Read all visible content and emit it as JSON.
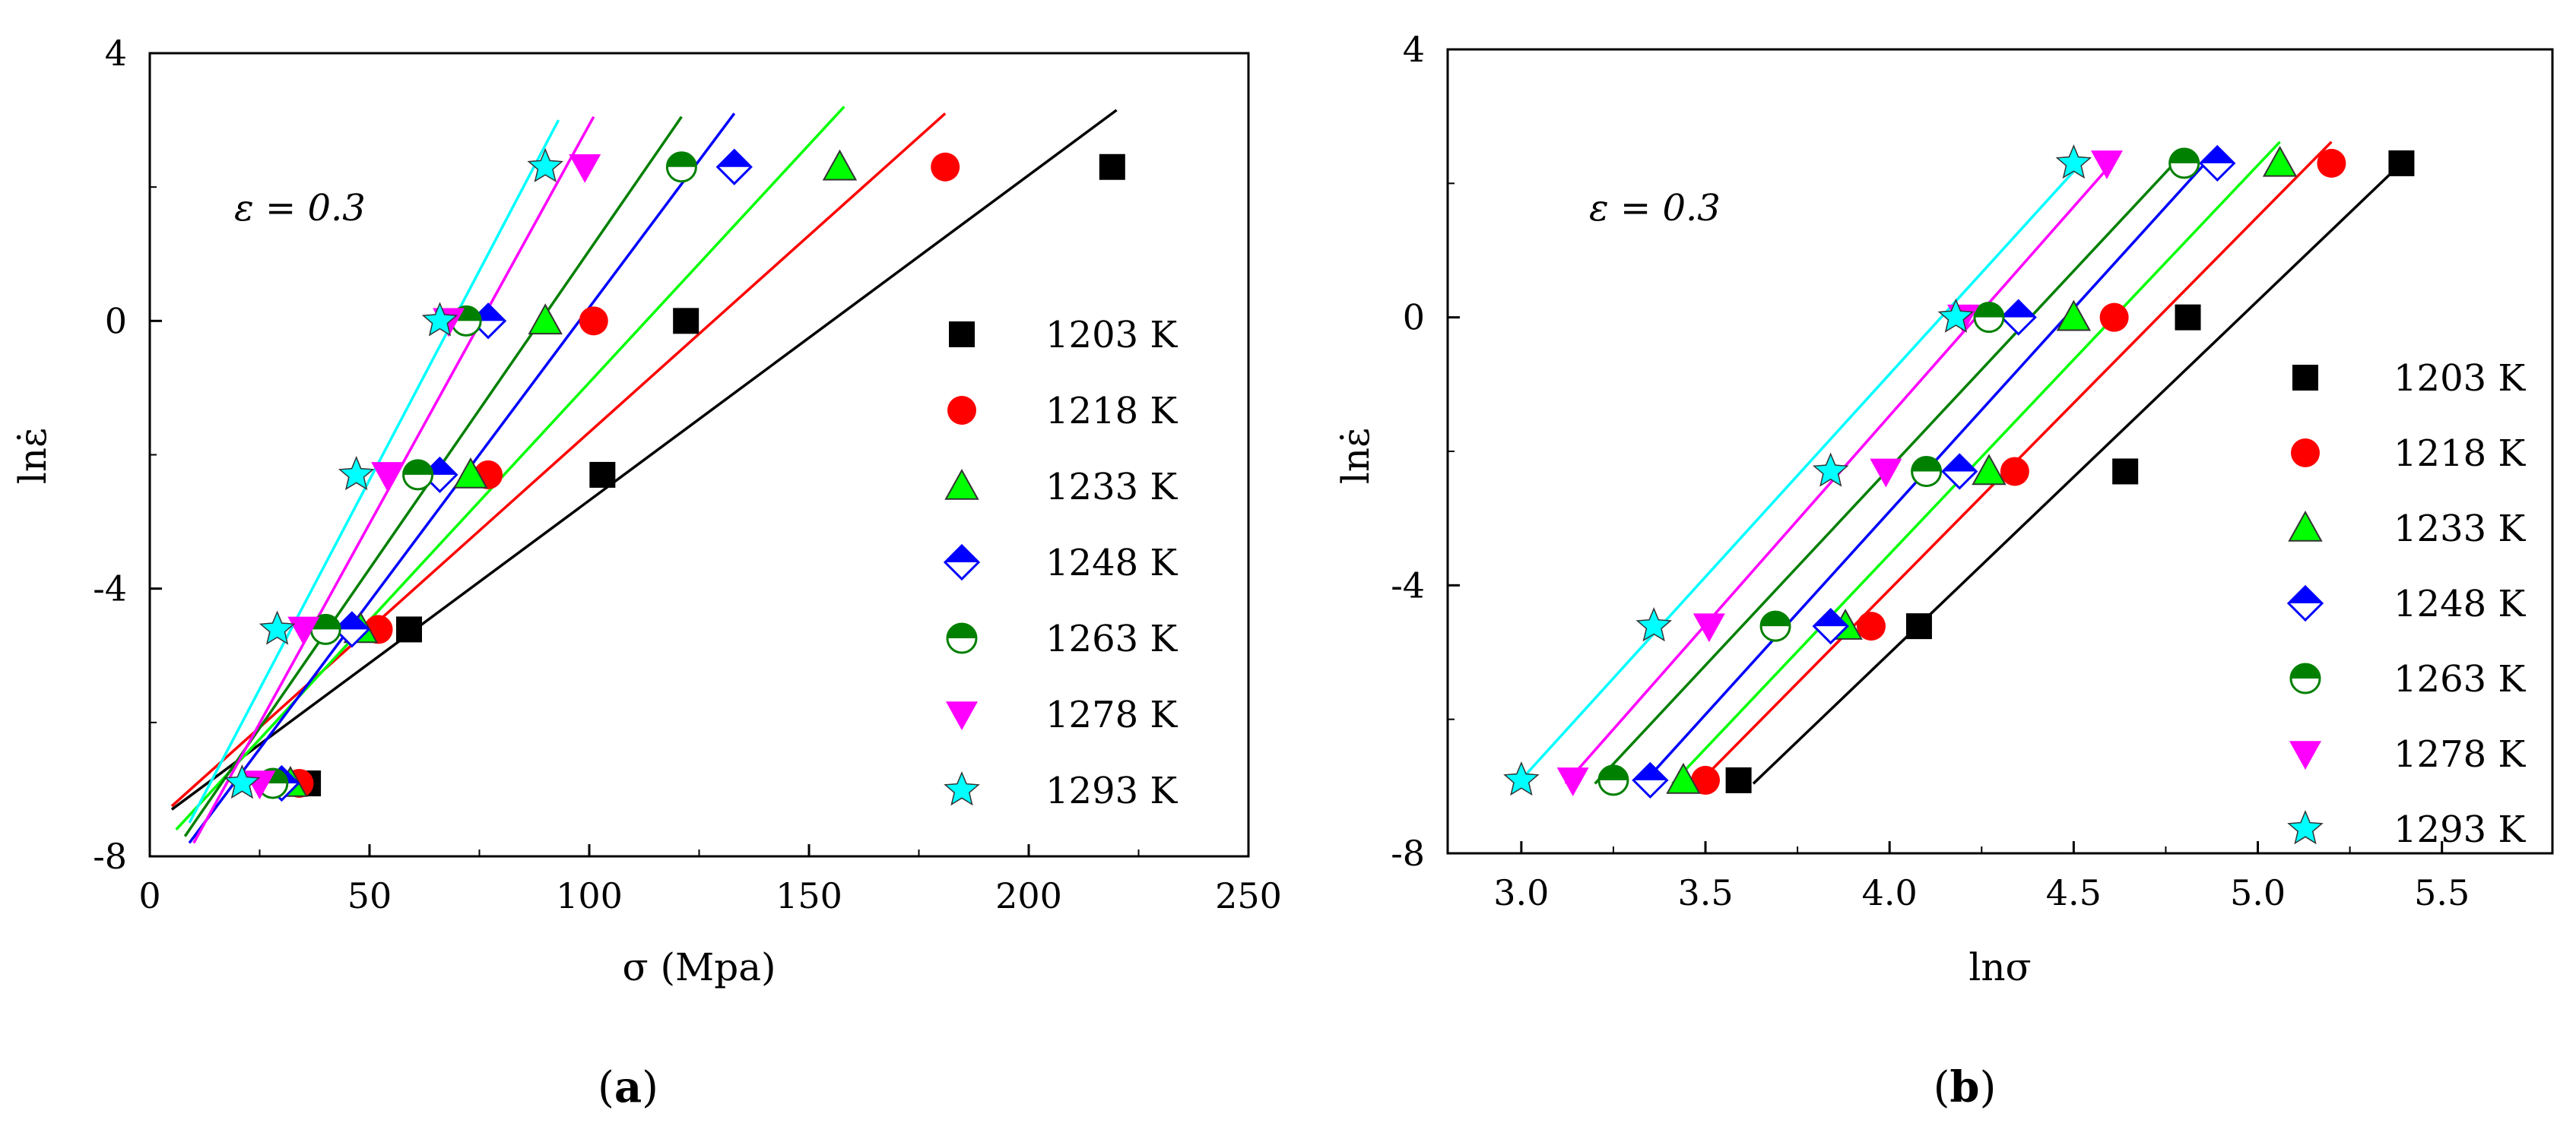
{
  "chart_data": [
    {
      "type": "scatter",
      "panel": "(a)",
      "panel_letter": "a",
      "xlabel": "σ (Mpa)",
      "ylabel": "lnε̇",
      "annotation": "ε = 0.3",
      "xlim": [
        0,
        250
      ],
      "ylim": [
        -8,
        4
      ],
      "xticks": [
        "0",
        "50",
        "100",
        "150",
        "200",
        "250"
      ],
      "yticks": [
        "-8",
        "-4",
        "0",
        "4"
      ],
      "legend_position": "right",
      "series": [
        {
          "name": "1203 K",
          "color": "#000000",
          "marker": "square",
          "x": [
            36,
            59,
            103,
            122,
            219
          ],
          "y": [
            -6.91,
            -4.61,
            -2.3,
            0,
            2.3
          ],
          "fit": [
            [
              5,
              -7.3
            ],
            [
              220,
              3.15
            ]
          ]
        },
        {
          "name": "1218 K",
          "color": "#ff0000",
          "marker": "circle",
          "x": [
            34,
            52,
            77,
            101,
            181
          ],
          "y": [
            -6.91,
            -4.61,
            -2.3,
            0,
            2.3
          ],
          "fit": [
            [
              5,
              -7.25
            ],
            [
              181,
              3.1
            ]
          ]
        },
        {
          "name": "1233 K",
          "color": "#00ff00",
          "marker": "triangle-up",
          "x": [
            32,
            48,
            73,
            90,
            157
          ],
          "y": [
            -6.91,
            -4.61,
            -2.3,
            0,
            2.3
          ],
          "fit": [
            [
              6,
              -7.6
            ],
            [
              158,
              3.2
            ]
          ]
        },
        {
          "name": "1248 K",
          "color": "#0000ff",
          "marker": "diamond-half",
          "x": [
            30,
            46,
            66,
            77,
            133
          ],
          "y": [
            -6.91,
            -4.61,
            -2.3,
            0,
            2.3
          ],
          "fit": [
            [
              9,
              -7.8
            ],
            [
              133,
              3.1
            ]
          ]
        },
        {
          "name": "1263 K",
          "color": "#008000",
          "marker": "circle-half",
          "x": [
            28,
            40,
            61,
            72,
            121
          ],
          "y": [
            -6.91,
            -4.61,
            -2.3,
            0,
            2.3
          ],
          "fit": [
            [
              8,
              -7.7
            ],
            [
              121,
              3.05
            ]
          ]
        },
        {
          "name": "1278 K",
          "color": "#ff00ff",
          "marker": "triangle-down",
          "x": [
            25,
            35,
            54,
            68,
            99
          ],
          "y": [
            -6.91,
            -4.61,
            -2.3,
            0,
            2.3
          ],
          "fit": [
            [
              10,
              -7.8
            ],
            [
              101,
              3.05
            ]
          ]
        },
        {
          "name": "1293 K",
          "color": "#00ffff",
          "marker": "star",
          "x": [
            21,
            29,
            47,
            66,
            90
          ],
          "y": [
            -6.91,
            -4.61,
            -2.3,
            0,
            2.3
          ],
          "fit": [
            [
              9,
              -7.5
            ],
            [
              93,
              3.0
            ]
          ]
        }
      ]
    },
    {
      "type": "scatter",
      "panel": "(b)",
      "panel_letter": "b",
      "xlabel": "lnσ",
      "ylabel": "lnε̇",
      "annotation": "ε = 0.3",
      "xlim": [
        2.8,
        5.8
      ],
      "ylim": [
        -8,
        4
      ],
      "xticks": [
        "3.0",
        "3.5",
        "4.0",
        "4.5",
        "5.0",
        "5.5"
      ],
      "yticks": [
        "-8",
        "-4",
        "0",
        "4"
      ],
      "legend_position": "right",
      "series": [
        {
          "name": "1203 K",
          "color": "#000000",
          "marker": "square",
          "x": [
            3.59,
            4.08,
            4.64,
            4.81,
            5.39
          ],
          "y": [
            -6.91,
            -4.61,
            -2.3,
            0,
            2.3
          ],
          "fit": [
            [
              3.63,
              -6.96
            ],
            [
              5.39,
              2.3
            ]
          ]
        },
        {
          "name": "1218 K",
          "color": "#ff0000",
          "marker": "circle",
          "x": [
            3.5,
            3.95,
            4.34,
            4.61,
            5.2
          ],
          "y": [
            -6.91,
            -4.61,
            -2.3,
            0,
            2.3
          ],
          "fit": [
            [
              3.48,
              -6.96
            ],
            [
              5.2,
              2.62
            ]
          ]
        },
        {
          "name": "1233 K",
          "color": "#00ff00",
          "marker": "triangle-up",
          "x": [
            3.44,
            3.88,
            4.27,
            4.5,
            5.06
          ],
          "y": [
            -6.91,
            -4.61,
            -2.3,
            0,
            2.3
          ],
          "fit": [
            [
              3.41,
              -6.96
            ],
            [
              5.06,
              2.62
            ]
          ]
        },
        {
          "name": "1248 K",
          "color": "#0000ff",
          "marker": "diamond-half",
          "x": [
            3.35,
            3.84,
            4.19,
            4.35,
            4.89
          ],
          "y": [
            -6.91,
            -4.61,
            -2.3,
            0,
            2.3
          ],
          "fit": [
            [
              3.33,
              -6.96
            ],
            [
              4.89,
              2.5
            ]
          ]
        },
        {
          "name": "1263 K",
          "color": "#008000",
          "marker": "circle-half",
          "x": [
            3.25,
            3.69,
            4.1,
            4.27,
            4.8
          ],
          "y": [
            -6.91,
            -4.61,
            -2.3,
            0,
            2.3
          ],
          "fit": [
            [
              3.2,
              -6.96
            ],
            [
              4.79,
              2.4
            ]
          ]
        },
        {
          "name": "1278 K",
          "color": "#ff00ff",
          "marker": "triangle-down",
          "x": [
            3.14,
            3.51,
            3.99,
            4.2,
            4.59
          ],
          "y": [
            -6.91,
            -4.61,
            -2.3,
            0,
            2.3
          ],
          "fit": [
            [
              3.12,
              -6.96
            ],
            [
              4.62,
              2.4
            ]
          ]
        },
        {
          "name": "1293 K",
          "color": "#00ffff",
          "marker": "star",
          "x": [
            3.0,
            3.36,
            3.84,
            4.18,
            4.5
          ],
          "y": [
            -6.91,
            -4.61,
            -2.3,
            0,
            2.3
          ],
          "fit": [
            [
              2.99,
              -6.96
            ],
            [
              4.52,
              2.3
            ]
          ]
        }
      ]
    }
  ]
}
